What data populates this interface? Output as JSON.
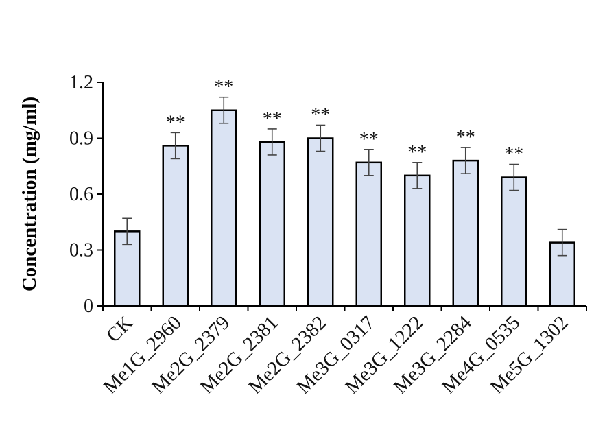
{
  "chart_data": {
    "type": "bar",
    "categories": [
      "CK",
      "Me1G_2960",
      "Me2G_2379",
      "Me2G_2381",
      "Me2G_2382",
      "Me3G_0317",
      "Me3G_1222",
      "Me3G_2284",
      "Me4G_0535",
      "Me5G_1302"
    ],
    "values": [
      0.4,
      0.86,
      1.05,
      0.88,
      0.9,
      0.77,
      0.7,
      0.78,
      0.69,
      0.34
    ],
    "errors": [
      0.07,
      0.07,
      0.07,
      0.07,
      0.07,
      0.07,
      0.07,
      0.07,
      0.07,
      0.07
    ],
    "significance": [
      "",
      "**",
      "**",
      "**",
      "**",
      "**",
      "**",
      "**",
      "**",
      ""
    ],
    "ylabel": "Concentration (mg/ml)",
    "xlabel": "",
    "ylim": [
      0,
      1.2
    ],
    "yticks": [
      "0",
      "0.3",
      "0.6",
      "0.9",
      "1.2"
    ],
    "bar_color": "#dae3f3",
    "bar_edge_color": "#000000",
    "grid": false
  }
}
